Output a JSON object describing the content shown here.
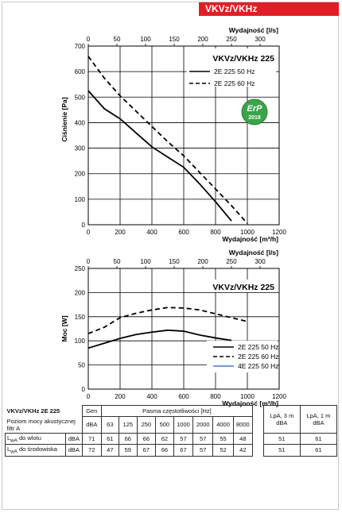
{
  "header": {
    "product": "VKVz/VKHz"
  },
  "erp_badge": {
    "label": "ErP",
    "year": "2018"
  },
  "chart_data": [
    {
      "type": "line",
      "title": "VKVz/VKHz 225",
      "xlabel": "Wydajność [m³/h]",
      "x2label": "Wydajność [l/s]",
      "ylabel": "Ciśnienie [Pa]",
      "xlim": [
        0,
        1200
      ],
      "x2lim": [
        0,
        333.3
      ],
      "ylim": [
        0,
        700
      ],
      "xticks": [
        "0",
        "200",
        "400",
        "600",
        "800",
        "1000",
        "1200"
      ],
      "x2ticks": [
        "0",
        "50",
        "100",
        "150",
        "200",
        "250",
        "300"
      ],
      "yticks": [
        "0",
        "100",
        "200",
        "300",
        "400",
        "500",
        "600",
        "700"
      ],
      "grid": true,
      "legend_position": "top-right",
      "series": [
        {
          "name": "2E 225 50 Hz",
          "style": "solid",
          "color": "#000000",
          "x": [
            0,
            100,
            200,
            300,
            400,
            500,
            600,
            700,
            800,
            900
          ],
          "y": [
            525,
            455,
            415,
            360,
            305,
            265,
            225,
            160,
            90,
            15
          ]
        },
        {
          "name": "2E 225 60 Hz",
          "style": "dashed",
          "color": "#000000",
          "x": [
            0,
            100,
            200,
            300,
            400,
            500,
            600,
            700,
            800,
            900,
            1000
          ],
          "y": [
            660,
            575,
            505,
            445,
            385,
            325,
            270,
            205,
            140,
            75,
            5
          ]
        }
      ]
    },
    {
      "type": "line",
      "title": "VKVz/VKHz 225",
      "xlabel": "Wydajność [m³/h]",
      "x2label": "Wydajność [l/s]",
      "ylabel": "Moc [W]",
      "xlim": [
        0,
        1200
      ],
      "x2lim": [
        0,
        333.3
      ],
      "ylim": [
        0,
        250
      ],
      "xticks": [
        "0",
        "200",
        "400",
        "600",
        "800",
        "1000",
        "1200"
      ],
      "x2ticks": [
        "0",
        "50",
        "100",
        "150",
        "200",
        "250",
        "300"
      ],
      "yticks": [
        "0",
        "50",
        "100",
        "150",
        "200",
        "250"
      ],
      "grid": true,
      "legend_position": "bottom-right",
      "series": [
        {
          "name": "2E 225 50 Hz",
          "style": "solid",
          "color": "#000000",
          "x": [
            0,
            100,
            200,
            300,
            400,
            500,
            600,
            700,
            800,
            900
          ],
          "y": [
            85,
            95,
            105,
            113,
            118,
            122,
            120,
            112,
            106,
            101
          ]
        },
        {
          "name": "2E 225 60 Hz",
          "style": "dashed",
          "color": "#000000",
          "x": [
            0,
            100,
            200,
            300,
            400,
            500,
            600,
            700,
            800,
            900,
            1000
          ],
          "y": [
            115,
            128,
            148,
            157,
            164,
            169,
            168,
            164,
            156,
            148,
            140
          ]
        },
        {
          "name": "4E 225 50 Hz",
          "style": "solid",
          "color": "#3f7fc9",
          "x": [],
          "y": []
        }
      ]
    }
  ],
  "table": {
    "title": "VKVz/VKHz 2E 225",
    "subtitle": "Poziom mocy akustycznej filtr A",
    "gen_label": "Gen",
    "band_label": "Pasma częstotliwości [Hz]",
    "lpa3_label": "LpA, 3 m dBA",
    "lpa1_label": "LpA, 1 m dBA",
    "unit_header": "dBA",
    "frequencies": [
      "63",
      "125",
      "250",
      "500",
      "1000",
      "2000",
      "4000",
      "8000"
    ],
    "rows": [
      {
        "label_main": "L",
        "label_sub": "wA",
        "label_rest": " do wlotu",
        "unit": "dBA",
        "gen": "71",
        "bands": [
          "61",
          "66",
          "66",
          "62",
          "57",
          "57",
          "55",
          "48"
        ],
        "lpa3": "51",
        "lpa1": "61"
      },
      {
        "label_main": "L",
        "label_sub": "wA",
        "label_rest": " do środowiska",
        "unit": "dBA",
        "gen": "72",
        "bands": [
          "47",
          "59",
          "67",
          "66",
          "67",
          "57",
          "52",
          "42"
        ],
        "lpa3": "51",
        "lpa1": "61"
      }
    ]
  }
}
